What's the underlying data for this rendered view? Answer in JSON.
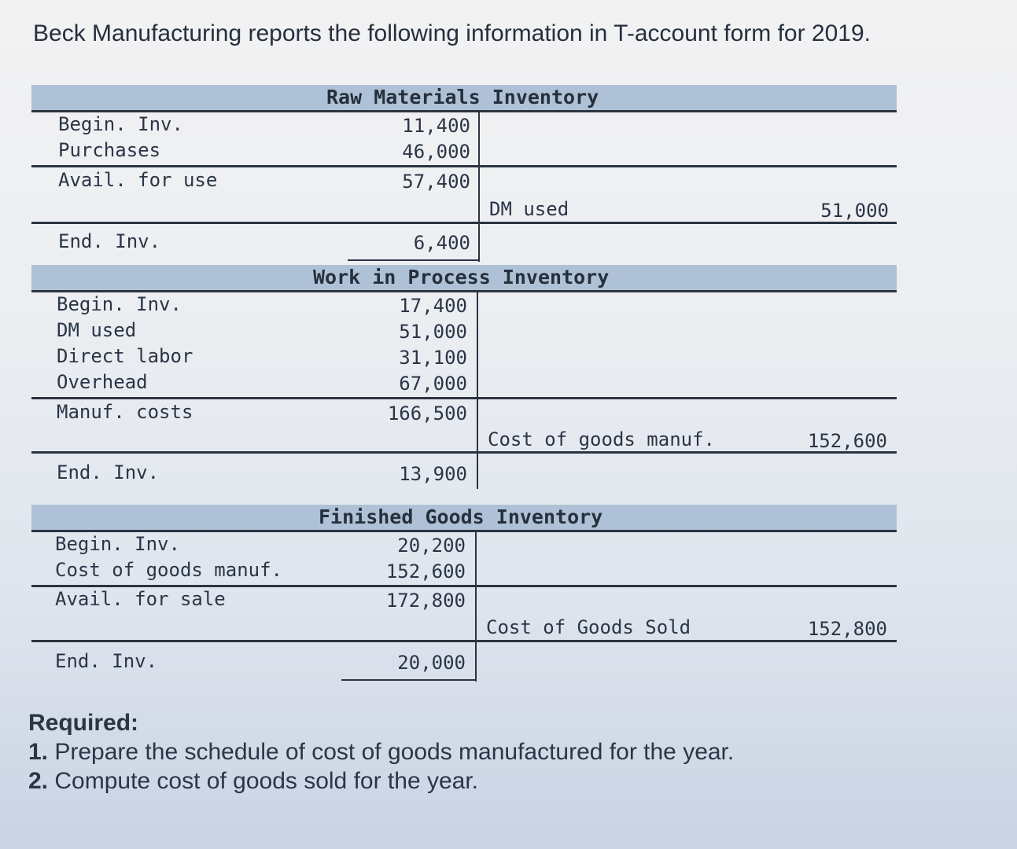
{
  "intro": "Beck Manufacturing reports the following information in T-account form for 2019.",
  "raw_materials": {
    "title": "Raw Materials Inventory",
    "begin_label": "Begin. Inv.",
    "begin_value": "11,400",
    "purchases_label": "Purchases",
    "purchases_value": "46,000",
    "avail_label": "Avail. for use",
    "avail_value": "57,400",
    "credit_label": "DM used",
    "credit_value": "51,000",
    "end_label": "End. Inv.",
    "end_value": "6,400"
  },
  "work_in_process": {
    "title": "Work in Process Inventory",
    "begin_label": "Begin. Inv.",
    "begin_value": "17,400",
    "dm_label": "DM used",
    "dm_value": "51,000",
    "dl_label": "Direct labor",
    "dl_value": "31,100",
    "oh_label": "Overhead",
    "oh_value": "67,000",
    "manuf_label": "Manuf. costs",
    "manuf_value": "166,500",
    "credit_label": "Cost of goods manuf.",
    "credit_value": "152,600",
    "end_label": "End. Inv.",
    "end_value": "13,900"
  },
  "finished_goods": {
    "title": "Finished Goods Inventory",
    "begin_label": "Begin. Inv.",
    "begin_value": "20,200",
    "cogm_label": "Cost of goods manuf.",
    "cogm_value": "152,600",
    "avail_label": "Avail. for sale",
    "avail_value": "172,800",
    "credit_label": "Cost of Goods Sold",
    "credit_value": "152,800",
    "end_label": "End. Inv.",
    "end_value": "20,000"
  },
  "required": {
    "title": "Required:",
    "item1_num": "1.",
    "item1_text": " Prepare the schedule of cost of goods manufactured for the year.",
    "item2_num": "2.",
    "item2_text": " Compute cost of goods sold for the year."
  }
}
